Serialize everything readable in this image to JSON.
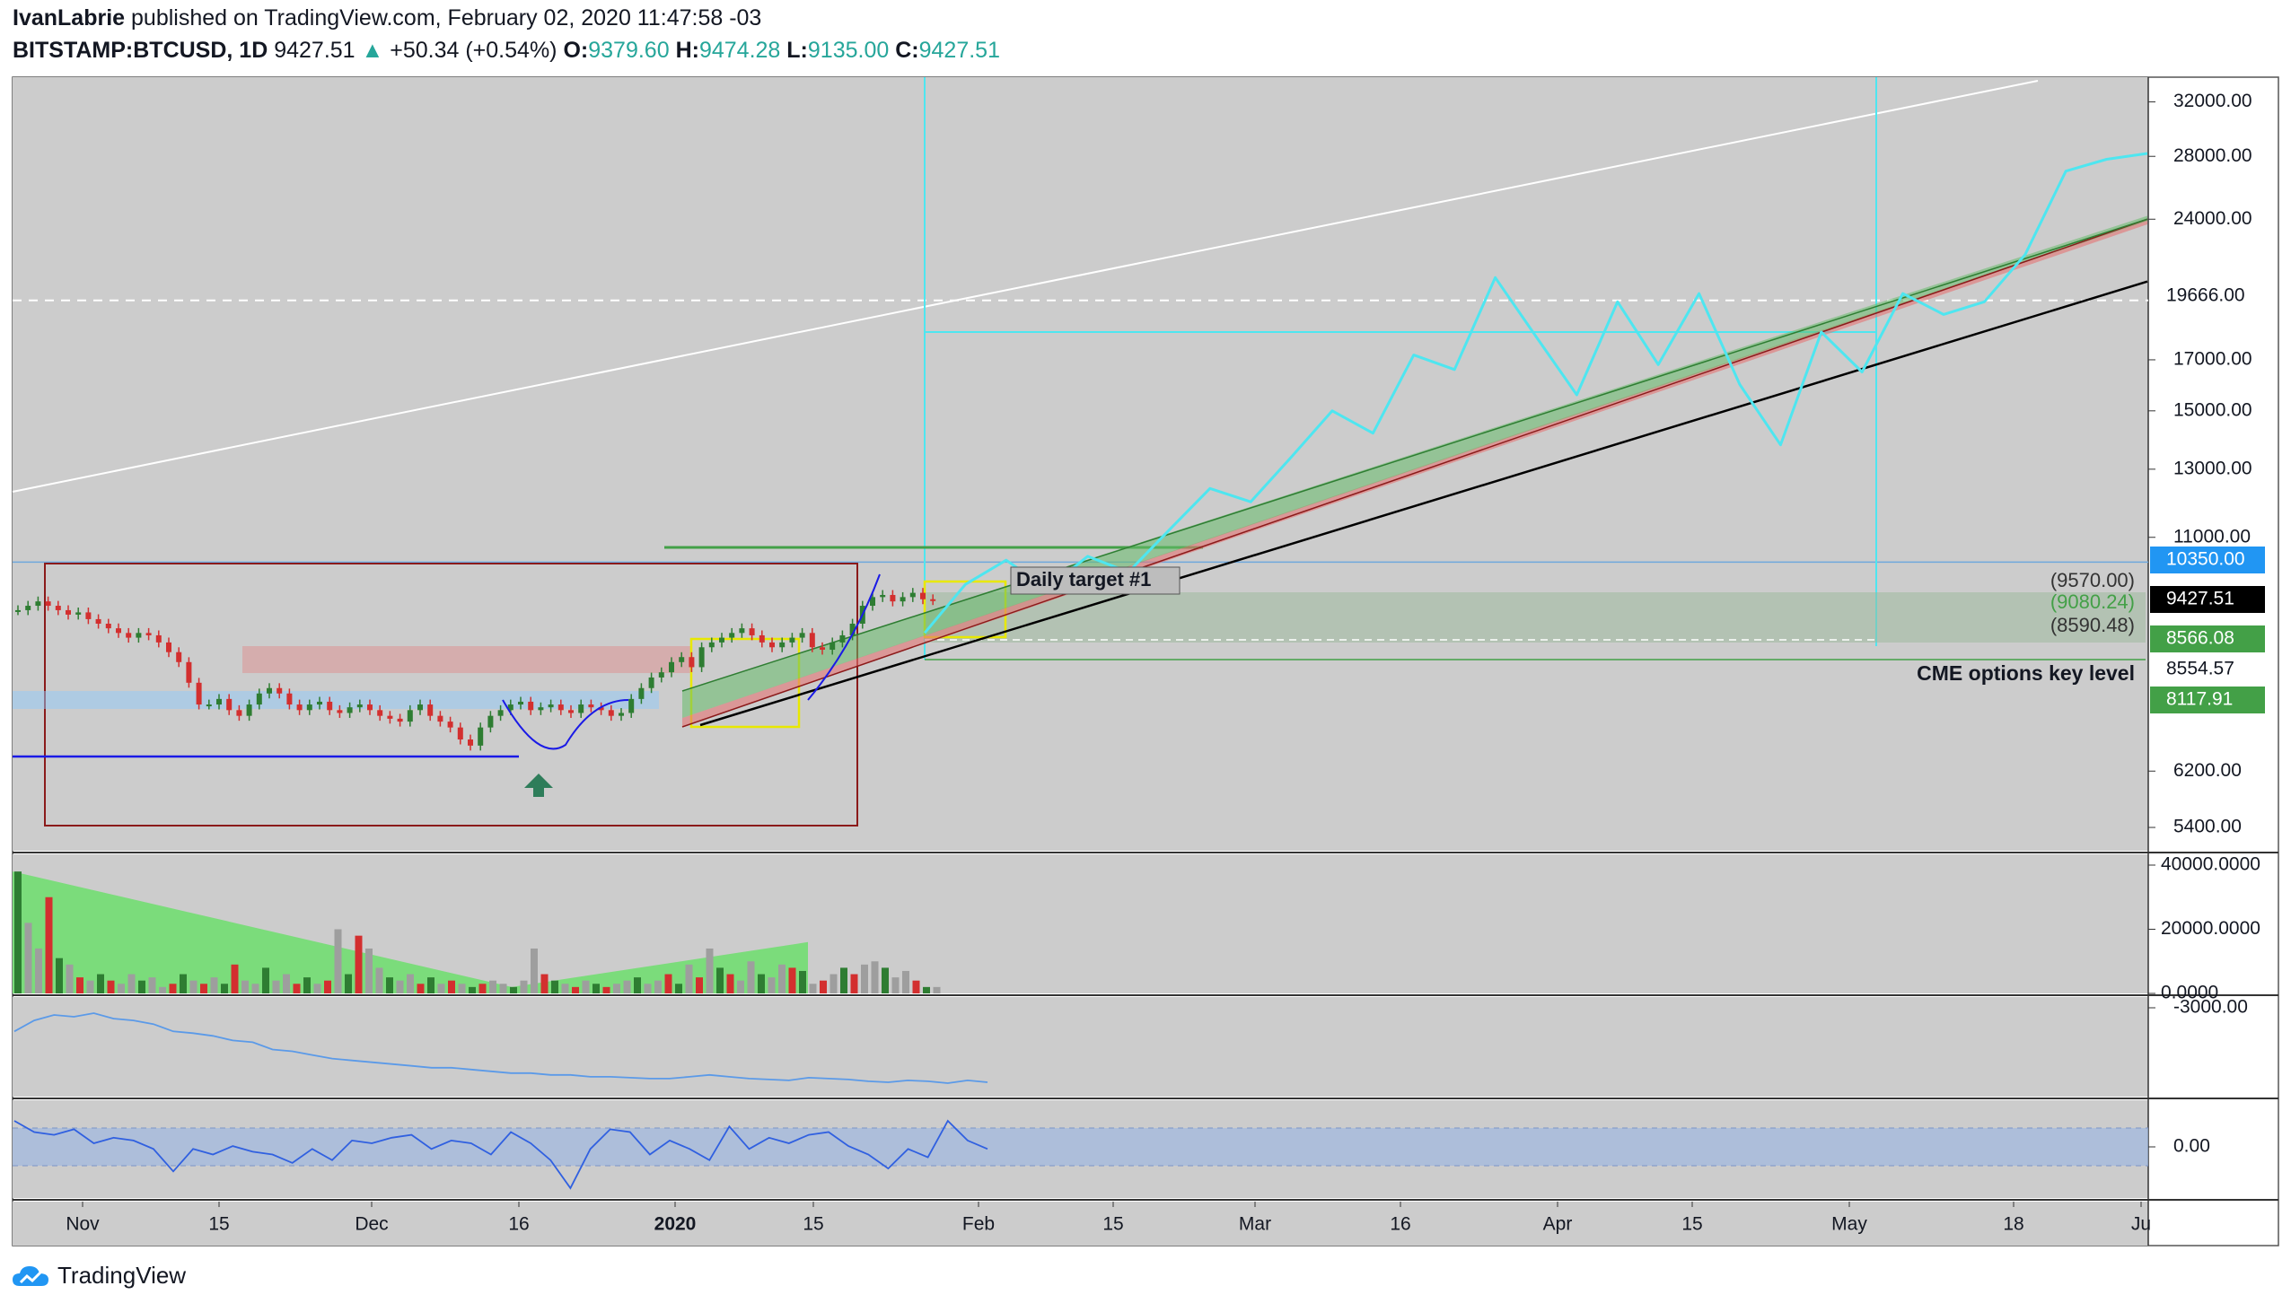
{
  "header": {
    "author": "IvanLabrie",
    "published_text": "published on TradingView.com, February 02, 2020 11:47:58 -03",
    "symbol": "BITSTAMP:BTCUSD, 1D",
    "last": "9427.51",
    "change": "+50.34 (+0.54%)",
    "o_label": "O:",
    "o_value": "9379.60",
    "h_label": "H:",
    "h_value": "9474.28",
    "l_label": "L:",
    "l_value": "9135.00",
    "c_label": "C:",
    "c_value": "9427.51"
  },
  "footer": {
    "brand": "TradingView"
  },
  "colors": {
    "background": "#cccccc",
    "up": "#26a69a",
    "down": "#ef5350",
    "projection": "#4ee6f0",
    "green_label": "#43a047",
    "blue_label": "#2196f3"
  },
  "chart_data": {
    "type": "line",
    "price_axis": {
      "scale": "log",
      "ticks": [
        "32000.00",
        "28000.00",
        "24000.00",
        "17000.00",
        "15000.00",
        "13000.00",
        "11000.00",
        "6200.00",
        "5400.00"
      ],
      "tick_values": [
        32000,
        28000,
        24000,
        17000,
        15000,
        13000,
        11000,
        6200,
        5400
      ],
      "ylim": [
        5100,
        34000
      ]
    },
    "price_labels": [
      {
        "text": "19666.00",
        "value": 19666,
        "style": "white"
      },
      {
        "text": "10350.00",
        "value": 10350,
        "style": "blue"
      },
      {
        "text": "9427.51",
        "value": 9427.51,
        "style": "black"
      },
      {
        "text": "8566.08",
        "value": 8566.08,
        "style": "green"
      },
      {
        "text": "8554.57",
        "value": 8554.57,
        "style": "plain"
      },
      {
        "text": "8117.91",
        "value": 8117.91,
        "style": "green"
      }
    ],
    "time_axis": {
      "labels": [
        "Nov",
        "15",
        "Dec",
        "16",
        "2020",
        "15",
        "Feb",
        "15",
        "Mar",
        "16",
        "Apr",
        "15",
        "May",
        "18",
        "Ju"
      ],
      "bold": [
        "2020"
      ]
    },
    "annotations": [
      {
        "text": "Daily target #1",
        "value": 9900
      },
      {
        "text": "(9570.00)",
        "value": 9570
      },
      {
        "text": "(9080.24)",
        "value": 9080.24
      },
      {
        "text": "(8590.48)",
        "value": 8590.48
      },
      {
        "text": "CME options key level",
        "value": 8200
      }
    ],
    "projection_path": [
      [
        0,
        8700
      ],
      [
        4,
        9800
      ],
      [
        8,
        10400
      ],
      [
        12,
        9700
      ],
      [
        16,
        10500
      ],
      [
        20,
        10100
      ],
      [
        24,
        11200
      ],
      [
        28,
        12400
      ],
      [
        32,
        12000
      ],
      [
        36,
        13400
      ],
      [
        40,
        15000
      ],
      [
        44,
        14200
      ],
      [
        48,
        17200
      ],
      [
        52,
        16600
      ],
      [
        56,
        20800
      ],
      [
        60,
        18000
      ],
      [
        64,
        15600
      ],
      [
        68,
        19600
      ],
      [
        72,
        16800
      ],
      [
        76,
        20000
      ],
      [
        80,
        16000
      ],
      [
        84,
        13800
      ],
      [
        88,
        18200
      ],
      [
        92,
        16500
      ],
      [
        96,
        20000
      ],
      [
        100,
        19000
      ],
      [
        104,
        19600
      ],
      [
        108,
        22000
      ],
      [
        112,
        27000
      ],
      [
        116,
        27800
      ],
      [
        120,
        28200
      ]
    ],
    "volume_axis": {
      "ticks": [
        "40000.0000",
        "20000.0000",
        "0.0000"
      ],
      "tick_values": [
        40000,
        20000,
        0
      ]
    },
    "volume": [
      38000,
      22000,
      14000,
      30000,
      11000,
      9000,
      5000,
      4000,
      6000,
      4000,
      3000,
      6000,
      4000,
      5000,
      2000,
      3000,
      6000,
      4000,
      3000,
      5000,
      3000,
      9000,
      4000,
      3000,
      8000,
      4000,
      6000,
      3000,
      5000,
      3000,
      4000,
      20000,
      6000,
      18000,
      14000,
      8000,
      5000,
      4000,
      6000,
      3000,
      5000,
      3000,
      4000,
      3000,
      2000,
      3000,
      4000,
      3000,
      2000,
      4000,
      14000,
      6000,
      4000,
      3000,
      2000,
      4000,
      3000,
      2000,
      3000,
      4000,
      5000,
      3000,
      4000,
      6000,
      3000,
      9000,
      5000,
      14000,
      8000,
      6000,
      4000,
      10000,
      6000,
      5000,
      9000,
      8000,
      7000,
      3000,
      4000,
      6000,
      8000,
      6000,
      9000,
      10000,
      8000,
      5000,
      7000,
      4000,
      2000,
      2000
    ],
    "indicator1": {
      "tick": "-3000.00",
      "values": [
        60,
        72,
        78,
        76,
        80,
        74,
        72,
        68,
        60,
        58,
        55,
        50,
        48,
        40,
        38,
        34,
        30,
        28,
        26,
        24,
        22,
        20,
        20,
        18,
        16,
        14,
        14,
        12,
        12,
        10,
        10,
        9,
        8,
        8,
        10,
        12,
        10,
        8,
        7,
        6,
        9,
        8,
        7,
        5,
        4,
        6,
        5,
        3,
        6,
        4
      ]
    },
    "indicator2": {
      "tick": "0.00",
      "values": [
        80,
        60,
        55,
        65,
        40,
        50,
        45,
        30,
        -10,
        30,
        20,
        35,
        25,
        20,
        5,
        30,
        10,
        45,
        40,
        50,
        55,
        30,
        45,
        40,
        20,
        60,
        40,
        10,
        -40,
        30,
        65,
        60,
        20,
        45,
        30,
        10,
        70,
        30,
        50,
        40,
        55,
        60,
        35,
        20,
        -5,
        30,
        15,
        80,
        45,
        30
      ]
    }
  }
}
